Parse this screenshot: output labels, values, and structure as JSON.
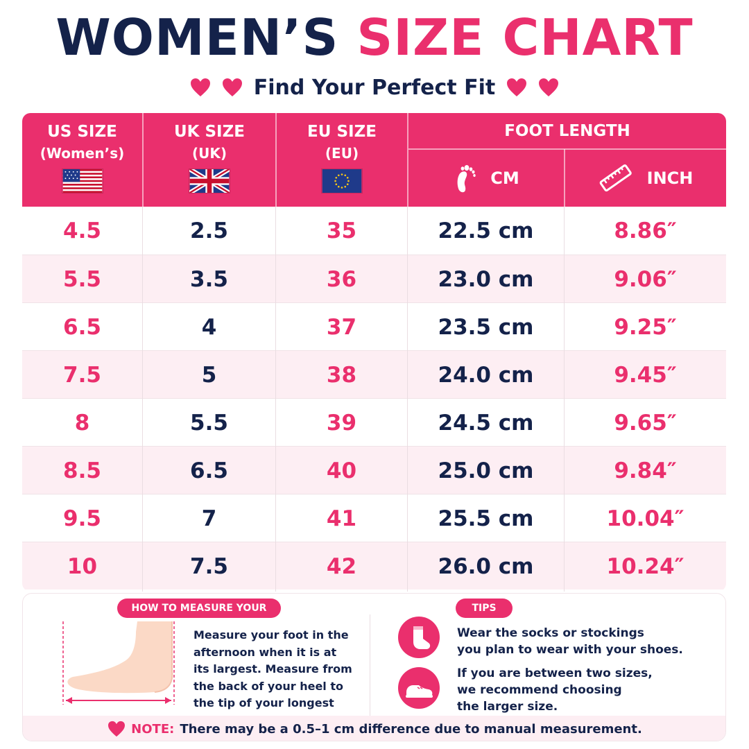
{
  "title": {
    "part1": "WOMEN’S",
    "part2": "SIZE CHART"
  },
  "subtitle": "Find Your Perfect Fit",
  "colors": {
    "pink": "#ea2f6d",
    "navy": "#14224a",
    "row_alt": "#fdeef3"
  },
  "table": {
    "headers": {
      "us": {
        "line1": "US SIZE",
        "line2": "(Women’s)",
        "flag": "us-flag-icon"
      },
      "uk": {
        "line1": "UK SIZE",
        "line2": "(UK)",
        "flag": "uk-flag-icon"
      },
      "eu": {
        "line1": "EU SIZE",
        "line2": "(EU)",
        "flag": "eu-flag-icon"
      },
      "foot_length": "FOOT LENGTH",
      "cm": {
        "label": "CM",
        "icon": "footprint-icon"
      },
      "inch": {
        "label": "INCH",
        "icon": "ruler-icon"
      }
    },
    "rows": [
      {
        "us": "4.5",
        "uk": "2.5",
        "eu": "35",
        "cm": "22.5 cm",
        "inch": "8.86″"
      },
      {
        "us": "5.5",
        "uk": "3.5",
        "eu": "36",
        "cm": "23.0 cm",
        "inch": "9.06″"
      },
      {
        "us": "6.5",
        "uk": "4",
        "eu": "37",
        "cm": "23.5 cm",
        "inch": "9.25″"
      },
      {
        "us": "7.5",
        "uk": "5",
        "eu": "38",
        "cm": "24.0 cm",
        "inch": "9.45″"
      },
      {
        "us": "8",
        "uk": "5.5",
        "eu": "39",
        "cm": "24.5 cm",
        "inch": "9.65″"
      },
      {
        "us": "8.5",
        "uk": "6.5",
        "eu": "40",
        "cm": "25.0 cm",
        "inch": "9.84″"
      },
      {
        "us": "9.5",
        "uk": "7",
        "eu": "41",
        "cm": "25.5 cm",
        "inch": "10.04″"
      },
      {
        "us": "10",
        "uk": "7.5",
        "eu": "42",
        "cm": "26.0 cm",
        "inch": "10.24″"
      }
    ]
  },
  "measure": {
    "heading": "HOW TO MEASURE YOUR FOOT",
    "lines": [
      "Measure your foot in the",
      "afternoon when it is at",
      "its largest. Measure from",
      "the back of your heel to",
      "the tip of your longest toe."
    ],
    "icon": "foot-measure-icon"
  },
  "tips": {
    "heading": "TIPS",
    "items": [
      {
        "icon": "sock-icon",
        "lines": [
          "Wear the socks or stockings",
          "you plan to wear with your shoes."
        ]
      },
      {
        "icon": "shoe-icon",
        "lines": [
          "If you are between two sizes,",
          "we recommend choosing",
          "the larger size."
        ]
      }
    ]
  },
  "note": {
    "label": "NOTE:",
    "text": "There may be a 0.5–1 cm difference due to manual measurement."
  }
}
